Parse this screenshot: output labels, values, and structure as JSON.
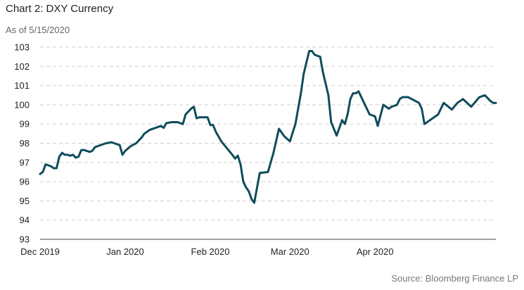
{
  "title": "Chart 2: DXY Currency",
  "subtitle": "As of 5/15/2020",
  "source": "Source: Bloomberg Finance LP",
  "chart_data": {
    "type": "line",
    "title": "Chart 2: DXY Currency",
    "subtitle": "As of 5/15/2020",
    "xlabel": "",
    "ylabel": "",
    "ylim": [
      93,
      103
    ],
    "yticks": [
      93,
      94,
      95,
      96,
      97,
      98,
      99,
      100,
      101,
      102,
      103
    ],
    "xlim": [
      "2019-12-01",
      "2020-05-15"
    ],
    "xticks": [
      {
        "label": "Dec 2019",
        "date": "2019-12-01"
      },
      {
        "label": "Jan 2020",
        "date": "2020-01-01"
      },
      {
        "label": "Feb 2020",
        "date": "2020-02-01"
      },
      {
        "label": "Mar 2020",
        "date": "2020-03-01"
      },
      {
        "label": "Apr 2020",
        "date": "2020-04-01"
      }
    ],
    "grid": "horizontal dashed",
    "series": [
      {
        "color": "#0f4c5c",
        "x": [
          "2019-12-01",
          "2019-12-02",
          "2019-12-03",
          "2019-12-04",
          "2019-12-05",
          "2019-12-06",
          "2019-12-07",
          "2019-12-08",
          "2019-12-09",
          "2019-12-10",
          "2019-12-11",
          "2019-12-12",
          "2019-12-13",
          "2019-12-14",
          "2019-12-15",
          "2019-12-16",
          "2019-12-17",
          "2019-12-18",
          "2019-12-19",
          "2019-12-20",
          "2019-12-21",
          "2019-12-23",
          "2019-12-25",
          "2019-12-27",
          "2019-12-28",
          "2019-12-30",
          "2019-12-31",
          "2020-01-01",
          "2020-01-03",
          "2020-01-05",
          "2020-01-07",
          "2020-01-08",
          "2020-01-10",
          "2020-01-12",
          "2020-01-14",
          "2020-01-15",
          "2020-01-16",
          "2020-01-18",
          "2020-01-20",
          "2020-01-21",
          "2020-01-22",
          "2020-01-23",
          "2020-01-25",
          "2020-01-26",
          "2020-01-27",
          "2020-01-28",
          "2020-01-31",
          "2020-02-01",
          "2020-02-02",
          "2020-02-03",
          "2020-02-05",
          "2020-02-07",
          "2020-02-09",
          "2020-02-10",
          "2020-02-11",
          "2020-02-12",
          "2020-02-13",
          "2020-02-14",
          "2020-02-15",
          "2020-02-16",
          "2020-02-17",
          "2020-02-19",
          "2020-02-22",
          "2020-02-24",
          "2020-02-26",
          "2020-02-28",
          "2020-03-01",
          "2020-03-03",
          "2020-03-05",
          "2020-03-06",
          "2020-03-08",
          "2020-03-09",
          "2020-03-10",
          "2020-03-12",
          "2020-03-13",
          "2020-03-15",
          "2020-03-16",
          "2020-03-18",
          "2020-03-19",
          "2020-03-20",
          "2020-03-21",
          "2020-03-22",
          "2020-03-23",
          "2020-03-24",
          "2020-03-25",
          "2020-03-26",
          "2020-03-28",
          "2020-03-30",
          "2020-03-31",
          "2020-04-01",
          "2020-04-02",
          "2020-04-04",
          "2020-04-06",
          "2020-04-07",
          "2020-04-09",
          "2020-04-10",
          "2020-04-11",
          "2020-04-13",
          "2020-04-15",
          "2020-04-17",
          "2020-04-18",
          "2020-04-19",
          "2020-04-21",
          "2020-04-24",
          "2020-04-26",
          "2020-04-29",
          "2020-05-01",
          "2020-05-03",
          "2020-05-06",
          "2020-05-09",
          "2020-05-11",
          "2020-05-13",
          "2020-05-14",
          "2020-05-15"
        ],
        "y": [
          96.4,
          96.5,
          96.9,
          96.85,
          96.8,
          96.7,
          96.7,
          97.3,
          97.5,
          97.4,
          97.4,
          97.35,
          97.4,
          97.25,
          97.3,
          97.65,
          97.65,
          97.6,
          97.55,
          97.6,
          97.8,
          97.9,
          98.0,
          98.05,
          98.0,
          97.9,
          97.4,
          97.6,
          97.85,
          98.0,
          98.3,
          98.5,
          98.7,
          98.8,
          98.9,
          98.8,
          99.05,
          99.1,
          99.1,
          99.05,
          99.0,
          99.5,
          99.8,
          99.9,
          99.3,
          99.35,
          99.35,
          98.95,
          98.95,
          98.6,
          98.1,
          97.75,
          97.4,
          97.2,
          97.35,
          96.9,
          96.0,
          95.7,
          95.5,
          95.1,
          94.9,
          96.45,
          96.5,
          97.5,
          98.75,
          98.35,
          98.1,
          99.0,
          100.6,
          101.6,
          102.8,
          102.8,
          102.6,
          102.5,
          101.7,
          100.5,
          99.1,
          98.4,
          98.8,
          99.2,
          99.0,
          99.5,
          100.3,
          100.6,
          100.6,
          100.7,
          100.1,
          99.5,
          99.45,
          99.4,
          98.9,
          100.0,
          99.8,
          99.9,
          100.0,
          100.3,
          100.4,
          100.4,
          100.25,
          100.1,
          99.8,
          99.0,
          99.2,
          99.5,
          100.1,
          99.75,
          100.1,
          100.3,
          99.9,
          100.4,
          100.5,
          100.2,
          100.1,
          100.1
        ]
      }
    ]
  }
}
